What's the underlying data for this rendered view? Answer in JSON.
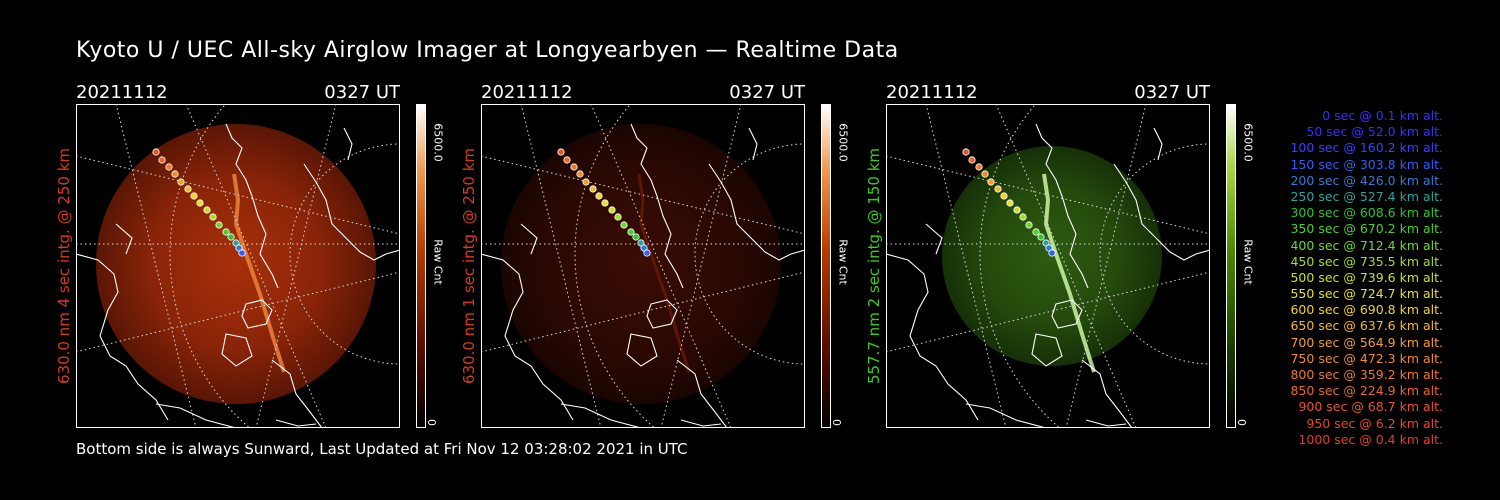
{
  "title": "Kyoto U / UEC All-sky Airglow Imager at Longyearbyen — Realtime Data",
  "footer": "Bottom side is always Sunward, Last Updated at Fri Nov 12 03:28:02 2021 in UTC",
  "panels": [
    {
      "date": "20211112",
      "time": "0327 UT",
      "side_label": "630.0 nm 4 sec intg. @ 250 km",
      "side_color": "#d83a1e",
      "cb_max": "6500.0",
      "cb_unit": "Raw Cnt",
      "cb_min": "0",
      "colormap": "red",
      "intensity": "bright"
    },
    {
      "date": "20211112",
      "time": "0327 UT",
      "side_label": "630.0 nm 1 sec intg. @ 250 km",
      "side_color": "#d83a1e",
      "cb_max": "6500.0",
      "cb_unit": "Raw Cnt",
      "cb_min": "0",
      "colormap": "red",
      "intensity": "dim"
    },
    {
      "date": "20211112",
      "time": "0327 UT",
      "side_label": "557.7 nm 2 sec intg. @ 150 km",
      "side_color": "#3ccc1e",
      "cb_max": "6500.0",
      "cb_unit": "Raw Cnt",
      "cb_min": "0",
      "colormap": "green",
      "intensity": "green"
    }
  ],
  "legend": [
    {
      "text": "0 sec @    0.1 km alt.",
      "color": "#3a2dff"
    },
    {
      "text": "50 sec @   52.0 km alt.",
      "color": "#3a2dff"
    },
    {
      "text": "100 sec @  160.2 km alt.",
      "color": "#3a40ff"
    },
    {
      "text": "150 sec @  303.8 km alt.",
      "color": "#2f5dff"
    },
    {
      "text": "200 sec @  426.0 km alt.",
      "color": "#2e7cd6"
    },
    {
      "text": "250 sec @  527.4 km alt.",
      "color": "#2aa39e"
    },
    {
      "text": "300 sec @  608.6 km alt.",
      "color": "#2dc52a"
    },
    {
      "text": "350 sec @  670.2 km alt.",
      "color": "#46d22a"
    },
    {
      "text": "400 sec @  712.4 km alt.",
      "color": "#6ed82a"
    },
    {
      "text": "450 sec @  735.5 km alt.",
      "color": "#a2dc2a"
    },
    {
      "text": "500 sec @  739.6 km alt.",
      "color": "#c8e02a"
    },
    {
      "text": "550 sec @  724.7 km alt.",
      "color": "#e6e02a"
    },
    {
      "text": "600 sec @  690.8 km alt.",
      "color": "#f2d22a"
    },
    {
      "text": "650 sec @  637.6 km alt.",
      "color": "#f4b92a"
    },
    {
      "text": "700 sec @  564.9 km alt.",
      "color": "#f49e2a"
    },
    {
      "text": "750 sec @  472.3 km alt.",
      "color": "#f38a2a"
    },
    {
      "text": "800 sec @  359.2 km alt.",
      "color": "#f0782a"
    },
    {
      "text": "850 sec @  224.9 km alt.",
      "color": "#ec642a"
    },
    {
      "text": "900 sec @   68.7 km alt.",
      "color": "#e8532a"
    },
    {
      "text": "950 sec @    6.2 km alt.",
      "color": "#e4472a"
    },
    {
      "text": "1000 sec @    0.4 km alt.",
      "color": "#e23c2a"
    }
  ]
}
